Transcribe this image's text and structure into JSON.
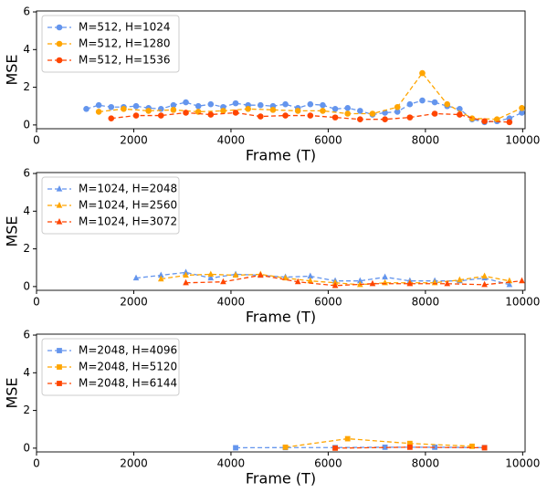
{
  "chart_data": [
    {
      "type": "line",
      "xlabel": "Frame (T)",
      "ylabel": "MSE",
      "xlim": [
        0,
        10050
      ],
      "ylim": [
        -0.2,
        6.05
      ],
      "xticks": [
        0,
        2000,
        4000,
        6000,
        8000,
        10000
      ],
      "yticks": [
        0,
        2,
        4,
        6
      ],
      "legend": "upper left",
      "series": [
        {
          "name": "M=512, H=1024",
          "color": "#6495ed",
          "marker": "circle",
          "x": [
            1024,
            1280,
            1536,
            1792,
            2048,
            2304,
            2560,
            2816,
            3072,
            3328,
            3584,
            3840,
            4096,
            4352,
            4608,
            4864,
            5120,
            5376,
            5632,
            5888,
            6144,
            6400,
            6656,
            6912,
            7168,
            7424,
            7680,
            7936,
            8192,
            8448,
            8704,
            8960,
            9216,
            9472,
            9728,
            9984
          ],
          "values": [
            0.85,
            1.05,
            0.95,
            0.95,
            1.0,
            0.9,
            0.85,
            1.05,
            1.2,
            1.0,
            1.1,
            0.95,
            1.15,
            1.05,
            1.05,
            1.0,
            1.1,
            0.9,
            1.1,
            1.05,
            0.85,
            0.9,
            0.75,
            0.55,
            0.65,
            0.7,
            1.1,
            1.3,
            1.2,
            1.0,
            0.85,
            0.3,
            0.15,
            0.2,
            0.35,
            0.65
          ]
        },
        {
          "name": "M=512, H=1280",
          "color": "#ffa500",
          "marker": "circle",
          "x": [
            1280,
            1792,
            2304,
            2816,
            3328,
            3840,
            4352,
            4864,
            5376,
            5888,
            6400,
            6912,
            7424,
            7936,
            8448,
            8960,
            9472,
            9984
          ],
          "values": [
            0.7,
            0.85,
            0.75,
            0.8,
            0.7,
            0.75,
            0.85,
            0.8,
            0.75,
            0.75,
            0.6,
            0.6,
            0.95,
            2.75,
            1.1,
            0.35,
            0.3,
            0.9
          ]
        },
        {
          "name": "M=512, H=1536",
          "color": "#ff4500",
          "marker": "circle",
          "x": [
            1536,
            2048,
            2560,
            3072,
            3584,
            4096,
            4608,
            5120,
            5632,
            6144,
            6656,
            7168,
            7680,
            8192,
            8704,
            9216,
            9728
          ],
          "values": [
            0.35,
            0.5,
            0.5,
            0.65,
            0.55,
            0.65,
            0.45,
            0.5,
            0.5,
            0.4,
            0.3,
            0.3,
            0.4,
            0.6,
            0.55,
            0.2,
            0.15
          ]
        }
      ]
    },
    {
      "type": "line",
      "xlabel": "Frame (T)",
      "ylabel": "MSE",
      "xlim": [
        0,
        10050
      ],
      "ylim": [
        -0.2,
        6.05
      ],
      "xticks": [
        0,
        2000,
        4000,
        6000,
        8000,
        10000
      ],
      "yticks": [
        0,
        2,
        4,
        6
      ],
      "legend": "upper left",
      "series": [
        {
          "name": "M=1024, H=2048",
          "color": "#6495ed",
          "marker": "triangle",
          "x": [
            2048,
            2560,
            3072,
            3584,
            4096,
            4608,
            5120,
            5632,
            6144,
            6656,
            7168,
            7680,
            8192,
            8704,
            9216,
            9728
          ],
          "values": [
            0.45,
            0.6,
            0.75,
            0.45,
            0.65,
            0.6,
            0.5,
            0.55,
            0.3,
            0.3,
            0.5,
            0.3,
            0.3,
            0.3,
            0.45,
            0.1
          ]
        },
        {
          "name": "M=1024, H=2560",
          "color": "#ffa500",
          "marker": "triangle",
          "x": [
            2560,
            3072,
            3584,
            4096,
            4608,
            5120,
            5632,
            6144,
            6656,
            7168,
            7680,
            8192,
            8704,
            9216,
            9728
          ],
          "values": [
            0.4,
            0.6,
            0.65,
            0.6,
            0.65,
            0.45,
            0.3,
            0.2,
            0.1,
            0.2,
            0.2,
            0.2,
            0.35,
            0.55,
            0.3
          ]
        },
        {
          "name": "M=1024, H=3072",
          "color": "#ff4500",
          "marker": "triangle",
          "x": [
            3072,
            3840,
            4608,
            5376,
            6144,
            6912,
            7680,
            8448,
            9216,
            9984
          ],
          "values": [
            0.2,
            0.25,
            0.6,
            0.25,
            0.05,
            0.15,
            0.15,
            0.15,
            0.1,
            0.3
          ]
        }
      ]
    },
    {
      "type": "line",
      "xlabel": "Frame (T)",
      "ylabel": "MSE",
      "xlim": [
        0,
        10050
      ],
      "ylim": [
        -0.2,
        6.05
      ],
      "xticks": [
        0,
        2000,
        4000,
        6000,
        8000,
        10000
      ],
      "yticks": [
        0,
        2,
        4,
        6
      ],
      "legend": "upper left",
      "series": [
        {
          "name": "M=2048, H=4096",
          "color": "#6495ed",
          "marker": "square",
          "x": [
            4096,
            5120,
            6144,
            7168,
            8192,
            9216
          ],
          "values": [
            0.02,
            0.03,
            0.03,
            0.05,
            0.05,
            0.03
          ]
        },
        {
          "name": "M=2048, H=5120",
          "color": "#ffa500",
          "marker": "square",
          "x": [
            5120,
            6400,
            7680,
            8960
          ],
          "values": [
            0.05,
            0.5,
            0.25,
            0.1
          ]
        },
        {
          "name": "M=2048, H=6144",
          "color": "#ff4500",
          "marker": "square",
          "x": [
            6144,
            7680,
            9216
          ],
          "values": [
            0.0,
            0.05,
            0.02
          ]
        }
      ]
    }
  ]
}
